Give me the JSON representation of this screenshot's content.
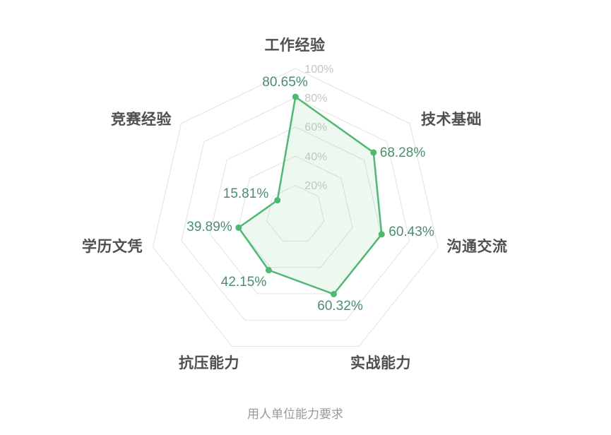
{
  "chart_data": {
    "type": "radar",
    "title": "用人单位能力要求",
    "indicators": [
      "工作经验",
      "技术基础",
      "沟通交流",
      "实战能力",
      "抗压能力",
      "学历文凭",
      "竞赛经验"
    ],
    "series": [
      {
        "name": "用人单位能力要求",
        "values": [
          80.65,
          68.28,
          60.43,
          60.32,
          42.15,
          39.89,
          15.81
        ]
      }
    ],
    "value_labels": [
      "80.65%",
      "68.28%",
      "60.43%",
      "60.32%",
      "42.15%",
      "39.89%",
      "15.81%"
    ],
    "ring_labels": [
      "20%",
      "40%",
      "60%",
      "80%",
      "100%"
    ],
    "min": 0,
    "max": 100,
    "rings": 5,
    "grid_shape": "polygon",
    "legend": "none",
    "colors": {
      "series_line": "#4fb873",
      "series_fill": "#4fb873",
      "series_fill_opacity": 0.1,
      "value_label": "#4d8c6e",
      "indicator_label": "#4f4f4f",
      "grid_line": "#e2e2e2",
      "axis_tick_label": "#c4c4c4",
      "title": "#999999"
    }
  }
}
